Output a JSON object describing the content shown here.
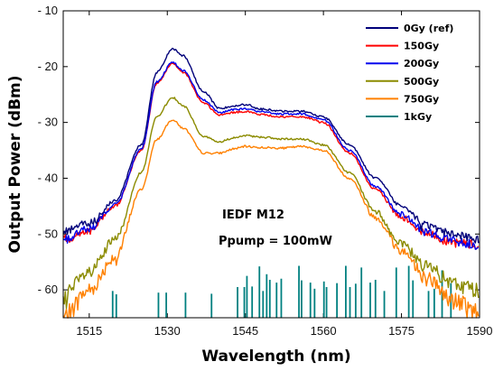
{
  "chart_data": {
    "type": "line",
    "title": "",
    "xlabel": "Wavelength (nm)",
    "ylabel": "Output Power (dBm)",
    "xlim": [
      1510,
      1590
    ],
    "ylim": [
      -65,
      -10
    ],
    "x_ticks": [
      1515,
      1530,
      1545,
      1560,
      1575,
      1590
    ],
    "y_ticks": [
      -10,
      -20,
      -30,
      -40,
      -50,
      -60
    ],
    "x_tick_labels": [
      "1515",
      "1530",
      "1545",
      "1560",
      "1575",
      "1590"
    ],
    "y_tick_labels": [
      "- 10",
      "- 20",
      "- 30",
      "- 40",
      "- 50",
      "- 60"
    ],
    "legend_position": "top-right",
    "annotations": [
      "IEDF M12",
      "Ppump = 100mW"
    ],
    "series": [
      {
        "name": "0Gy (ref)",
        "color": "#00007a",
        "points": [
          [
            1510,
            -49.5
          ],
          [
            1515,
            -48
          ],
          [
            1520,
            -44
          ],
          [
            1525,
            -34
          ],
          [
            1528,
            -21
          ],
          [
            1531,
            -16.8
          ],
          [
            1533,
            -18
          ],
          [
            1537,
            -24.5
          ],
          [
            1540,
            -27.5
          ],
          [
            1543,
            -27
          ],
          [
            1545,
            -26.8
          ],
          [
            1548,
            -27.6
          ],
          [
            1552,
            -28
          ],
          [
            1556,
            -28
          ],
          [
            1560,
            -29
          ],
          [
            1565,
            -34
          ],
          [
            1570,
            -40
          ],
          [
            1575,
            -45
          ],
          [
            1580,
            -48.5
          ],
          [
            1585,
            -50
          ],
          [
            1590,
            -51
          ]
        ]
      },
      {
        "name": "150Gy",
        "color": "#ff0000",
        "points": [
          [
            1510,
            -51
          ],
          [
            1515,
            -49.5
          ],
          [
            1520,
            -45
          ],
          [
            1525,
            -35
          ],
          [
            1528,
            -23
          ],
          [
            1531,
            -19.5
          ],
          [
            1533,
            -21
          ],
          [
            1537,
            -26.5
          ],
          [
            1540,
            -28.7
          ],
          [
            1543,
            -28.2
          ],
          [
            1545,
            -28
          ],
          [
            1548,
            -28.6
          ],
          [
            1552,
            -29
          ],
          [
            1556,
            -29
          ],
          [
            1560,
            -30
          ],
          [
            1565,
            -35.5
          ],
          [
            1570,
            -42
          ],
          [
            1575,
            -47
          ],
          [
            1580,
            -50
          ],
          [
            1585,
            -51.5
          ],
          [
            1590,
            -52
          ]
        ]
      },
      {
        "name": "200Gy",
        "color": "#0000ee",
        "points": [
          [
            1510,
            -51
          ],
          [
            1515,
            -49
          ],
          [
            1520,
            -44.8
          ],
          [
            1525,
            -34.8
          ],
          [
            1528,
            -22.7
          ],
          [
            1531,
            -19.2
          ],
          [
            1533,
            -20.7
          ],
          [
            1537,
            -26
          ],
          [
            1540,
            -28.2
          ],
          [
            1543,
            -27.7
          ],
          [
            1545,
            -27.5
          ],
          [
            1548,
            -28.1
          ],
          [
            1552,
            -28.5
          ],
          [
            1556,
            -28.5
          ],
          [
            1560,
            -29.5
          ],
          [
            1565,
            -35
          ],
          [
            1570,
            -41.5
          ],
          [
            1575,
            -46.5
          ],
          [
            1580,
            -49.8
          ],
          [
            1585,
            -51.2
          ],
          [
            1590,
            -52
          ]
        ]
      },
      {
        "name": "500Gy",
        "color": "#8b8b00",
        "points": [
          [
            1510,
            -61
          ],
          [
            1515,
            -57
          ],
          [
            1520,
            -51
          ],
          [
            1525,
            -39
          ],
          [
            1528,
            -29
          ],
          [
            1531,
            -25.5
          ],
          [
            1533,
            -27
          ],
          [
            1537,
            -32.5
          ],
          [
            1540,
            -33.5
          ],
          [
            1543,
            -32.7
          ],
          [
            1545,
            -32.4
          ],
          [
            1548,
            -32.6
          ],
          [
            1552,
            -33
          ],
          [
            1556,
            -33
          ],
          [
            1560,
            -34
          ],
          [
            1565,
            -39
          ],
          [
            1570,
            -46
          ],
          [
            1575,
            -52
          ],
          [
            1580,
            -56
          ],
          [
            1585,
            -59
          ],
          [
            1590,
            -60
          ]
        ]
      },
      {
        "name": "750Gy",
        "color": "#ff8000",
        "points": [
          [
            1510,
            -65
          ],
          [
            1515,
            -60
          ],
          [
            1520,
            -54
          ],
          [
            1525,
            -42
          ],
          [
            1528,
            -33
          ],
          [
            1531,
            -29.5
          ],
          [
            1533,
            -31
          ],
          [
            1537,
            -35.5
          ],
          [
            1540,
            -35.5
          ],
          [
            1543,
            -34.7
          ],
          [
            1545,
            -34.3
          ],
          [
            1548,
            -34.5
          ],
          [
            1552,
            -34.6
          ],
          [
            1556,
            -34.3
          ],
          [
            1560,
            -35
          ],
          [
            1565,
            -40
          ],
          [
            1570,
            -47
          ],
          [
            1575,
            -53
          ],
          [
            1580,
            -58
          ],
          [
            1585,
            -62
          ],
          [
            1590,
            -64
          ]
        ]
      },
      {
        "name": "1kGy",
        "color": "#008080",
        "points": [
          [
            1519.5,
            -60.2
          ],
          [
            1520.2,
            -60.8
          ],
          [
            1528.3,
            -60.5
          ],
          [
            1529.8,
            -60.5
          ],
          [
            1533.5,
            -60.5
          ],
          [
            1538.5,
            -60.7
          ],
          [
            1543.5,
            -59.5
          ],
          [
            1544.8,
            -59.5
          ],
          [
            1545.3,
            -57.5
          ],
          [
            1546.3,
            -59.4
          ],
          [
            1547.7,
            -55.8
          ],
          [
            1548.4,
            -60.2
          ],
          [
            1549.1,
            -57.2
          ],
          [
            1549.7,
            -58.2
          ],
          [
            1551,
            -58.7
          ],
          [
            1551.9,
            -58
          ],
          [
            1555.3,
            -55.7
          ],
          [
            1555.8,
            -58.3
          ],
          [
            1557.5,
            -58.7
          ],
          [
            1558.3,
            -59.8
          ],
          [
            1560.1,
            -58.5
          ],
          [
            1560.6,
            -59.5
          ],
          [
            1562.6,
            -58.8
          ],
          [
            1564.3,
            -55.7
          ],
          [
            1565.1,
            -59.5
          ],
          [
            1566.2,
            -58.9
          ],
          [
            1567.3,
            -56
          ],
          [
            1569,
            -58.7
          ],
          [
            1570,
            -58.2
          ],
          [
            1571.7,
            -60.2
          ],
          [
            1574,
            -56
          ],
          [
            1576.4,
            -55.7
          ],
          [
            1577.2,
            -58.3
          ],
          [
            1580.2,
            -60.2
          ],
          [
            1581.3,
            -59.8
          ],
          [
            1582.8,
            -56.5
          ],
          [
            1584.5,
            -58.8
          ]
        ]
      }
    ]
  }
}
